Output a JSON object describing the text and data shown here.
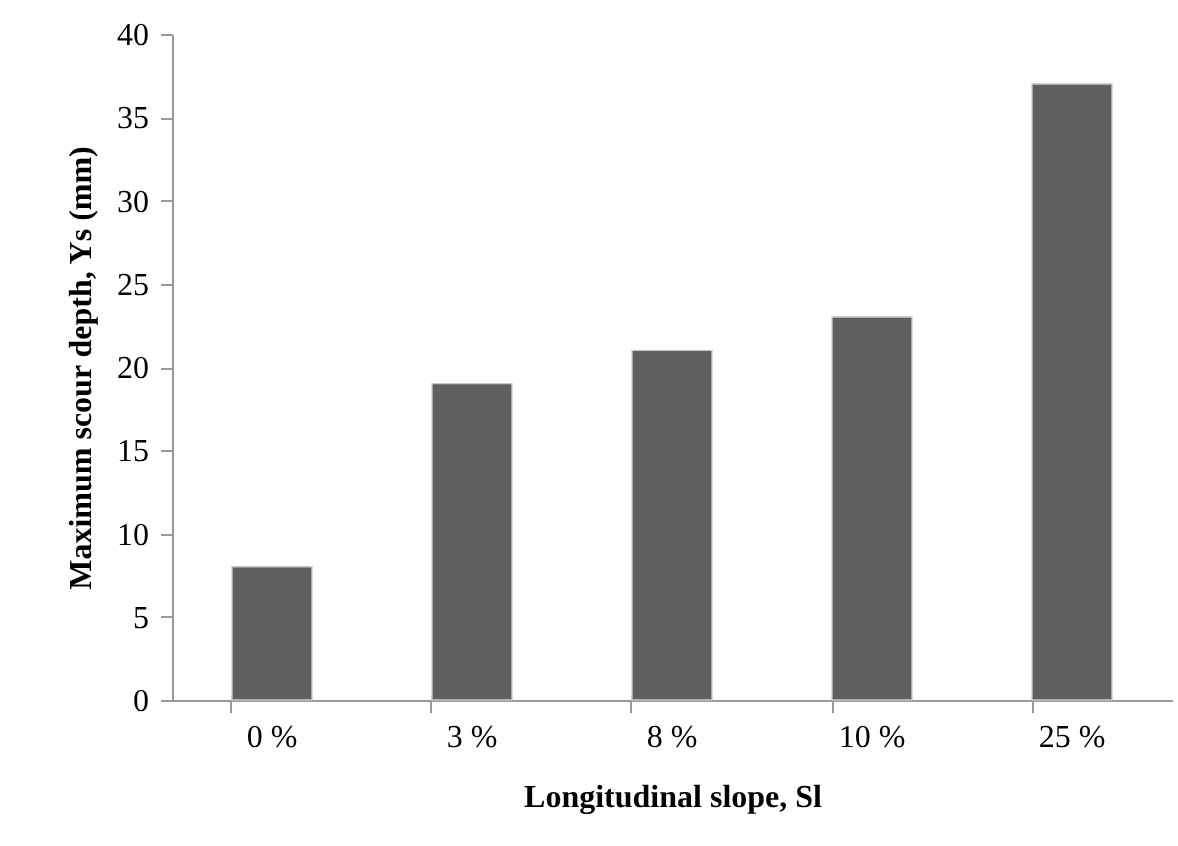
{
  "chart_data": {
    "type": "bar",
    "xlabel": "Longitudinal slope, Sl",
    "ylabel": "Maximum scour depth, Ys (mm)",
    "categories": [
      "0 %",
      "3 %",
      "8 %",
      "10 %",
      "25 %"
    ],
    "values": [
      8,
      19,
      21,
      23,
      37
    ],
    "color": "#606060",
    "ylim": [
      0,
      40
    ],
    "yticks": [
      0,
      5,
      10,
      15,
      20,
      25,
      30,
      35,
      40
    ],
    "grid": false
  }
}
